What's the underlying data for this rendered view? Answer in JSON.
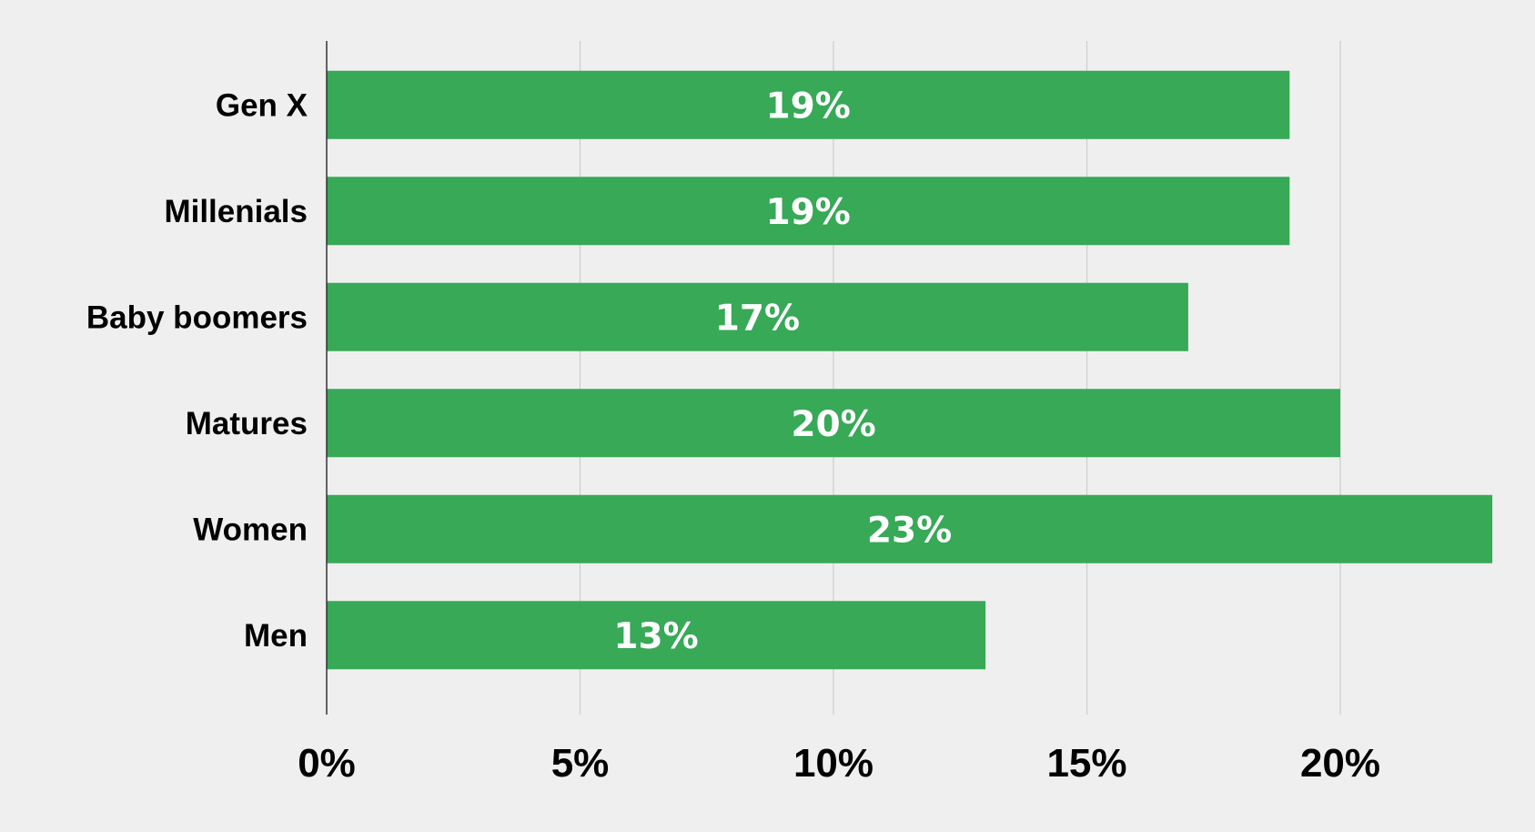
{
  "chart_data": {
    "type": "bar",
    "orientation": "horizontal",
    "categories": [
      "Gen X",
      "Millenials",
      "Baby boomers",
      "Matures",
      "Women",
      "Men"
    ],
    "values": [
      19,
      19,
      17,
      20,
      23,
      13
    ],
    "data_labels": [
      "19%",
      "19%",
      "17%",
      "20%",
      "23%",
      "13%"
    ],
    "xlim": [
      0,
      23
    ],
    "x_ticks": [
      0,
      5,
      10,
      15,
      20
    ],
    "x_tick_labels": [
      "0%",
      "5%",
      "10%",
      "15%",
      "20%"
    ],
    "title": "",
    "xlabel": "",
    "ylabel": "",
    "grid": "vertical",
    "legend": "none",
    "bar_color": "#37a957",
    "background_color": "#efefef"
  }
}
